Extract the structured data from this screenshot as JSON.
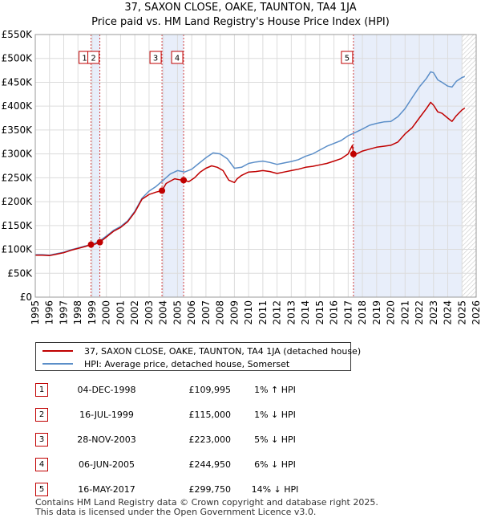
{
  "chart_data": {
    "type": "line",
    "title": "37, SAXON CLOSE, OAKE, TAUNTON, TA4 1JA",
    "subtitle": "Price paid vs. HM Land Registry's House Price Index (HPI)",
    "xlabel": "",
    "ylabel": "",
    "xlim": [
      1995,
      2026
    ],
    "ylim": [
      0,
      550000
    ],
    "y_ticks": [
      0,
      50000,
      100000,
      150000,
      200000,
      250000,
      300000,
      350000,
      400000,
      450000,
      500000,
      550000
    ],
    "y_tick_labels": [
      "£0",
      "£50K",
      "£100K",
      "£150K",
      "£200K",
      "£250K",
      "£300K",
      "£350K",
      "£400K",
      "£450K",
      "£500K",
      "£550K"
    ],
    "x_ticks": [
      1995,
      1996,
      1997,
      1998,
      1999,
      2000,
      2001,
      2002,
      2003,
      2004,
      2005,
      2006,
      2007,
      2008,
      2009,
      2010,
      2011,
      2012,
      2013,
      2014,
      2015,
      2016,
      2017,
      2018,
      2019,
      2020,
      2021,
      2022,
      2023,
      2024,
      2025,
      2026
    ],
    "x_tick_labels": [
      "1995",
      "1996",
      "1997",
      "1998",
      "1999",
      "2000",
      "2001",
      "2002",
      "2003",
      "2004",
      "2005",
      "2006",
      "2007",
      "2008",
      "2009",
      "2010",
      "2011",
      "2012",
      "2013",
      "2014",
      "2015",
      "2016",
      "2017",
      "2018",
      "2019",
      "2020",
      "2021",
      "2022",
      "2023",
      "2024",
      "2025",
      "2026"
    ],
    "grid": true,
    "hatch_after": 2025.0,
    "shaded_periods": [
      [
        1998.92,
        1999.54
      ],
      [
        2003.91,
        2005.43
      ],
      [
        2017.37,
        2025.0
      ]
    ],
    "series": [
      {
        "name": "37, SAXON CLOSE, OAKE, TAUNTON, TA4 1JA (detached house)",
        "color": "#c00000",
        "x": [
          1995.0,
          1995.5,
          1996.0,
          1996.5,
          1997.0,
          1997.5,
          1998.0,
          1998.5,
          1998.92,
          1999.2,
          1999.54,
          2000.0,
          2000.5,
          2001.0,
          2001.5,
          2002.0,
          2002.5,
          2003.0,
          2003.5,
          2003.91,
          2004.2,
          2004.5,
          2004.8,
          2005.1,
          2005.43,
          2005.8,
          2006.2,
          2006.6,
          2007.0,
          2007.4,
          2007.8,
          2008.2,
          2008.6,
          2009.0,
          2009.2,
          2009.5,
          2010.0,
          2010.5,
          2011.0,
          2011.5,
          2012.0,
          2012.5,
          2013.0,
          2013.5,
          2014.0,
          2014.5,
          2015.0,
          2015.5,
          2016.0,
          2016.5,
          2017.0,
          2017.3,
          2017.37,
          2017.6,
          2018.0,
          2018.5,
          2019.0,
          2019.5,
          2020.0,
          2020.5,
          2021.0,
          2021.5,
          2022.0,
          2022.5,
          2022.8,
          2023.0,
          2023.3,
          2023.6,
          2024.0,
          2024.3,
          2024.6,
          2025.0,
          2025.2
        ],
        "values": [
          88000,
          88000,
          87000,
          90000,
          93000,
          98000,
          102000,
          106000,
          109995,
          111000,
          115000,
          126000,
          138000,
          146000,
          158000,
          178000,
          205000,
          215000,
          220000,
          223000,
          238000,
          243000,
          248000,
          246000,
          244950,
          242000,
          250000,
          262000,
          270000,
          275000,
          272000,
          265000,
          245000,
          240000,
          248000,
          255000,
          262000,
          263000,
          265000,
          263000,
          259000,
          262000,
          265000,
          268000,
          272000,
          274000,
          277000,
          280000,
          285000,
          290000,
          300000,
          318000,
          299750,
          300000,
          306000,
          310000,
          314000,
          316000,
          318000,
          325000,
          342000,
          355000,
          375000,
          395000,
          408000,
          402000,
          388000,
          385000,
          375000,
          368000,
          380000,
          392000,
          396000
        ]
      },
      {
        "name": "HPI: Average price, detached house, Somerset",
        "color": "#5b8ec8",
        "x": [
          1995.0,
          1995.5,
          1996.0,
          1996.5,
          1997.0,
          1997.5,
          1998.0,
          1998.5,
          1999.0,
          1999.5,
          2000.0,
          2000.5,
          2001.0,
          2001.5,
          2002.0,
          2002.5,
          2003.0,
          2003.5,
          2004.0,
          2004.5,
          2005.0,
          2005.5,
          2006.0,
          2006.5,
          2007.0,
          2007.5,
          2008.0,
          2008.5,
          2009.0,
          2009.5,
          2010.0,
          2010.5,
          2011.0,
          2011.5,
          2012.0,
          2012.5,
          2013.0,
          2013.5,
          2014.0,
          2014.5,
          2015.0,
          2015.5,
          2016.0,
          2016.5,
          2017.0,
          2017.5,
          2018.0,
          2018.5,
          2019.0,
          2019.5,
          2020.0,
          2020.5,
          2021.0,
          2021.5,
          2022.0,
          2022.5,
          2022.8,
          2023.0,
          2023.3,
          2023.6,
          2024.0,
          2024.3,
          2024.6,
          2025.0,
          2025.2
        ],
        "values": [
          89000,
          89000,
          88000,
          91000,
          94000,
          99000,
          103000,
          107000,
          110000,
          117000,
          128000,
          140000,
          148000,
          160000,
          180000,
          207000,
          222000,
          232000,
          245000,
          258000,
          265000,
          262000,
          268000,
          280000,
          292000,
          302000,
          300000,
          290000,
          270000,
          272000,
          280000,
          283000,
          285000,
          282000,
          278000,
          281000,
          284000,
          288000,
          295000,
          300000,
          308000,
          316000,
          322000,
          328000,
          338000,
          345000,
          352000,
          360000,
          364000,
          367000,
          368000,
          378000,
          395000,
          418000,
          440000,
          458000,
          472000,
          470000,
          455000,
          450000,
          442000,
          440000,
          452000,
          460000,
          462000
        ]
      }
    ],
    "sale_markers": [
      {
        "label": "1",
        "x": 1998.92,
        "value": 109995
      },
      {
        "label": "2",
        "x": 1999.54,
        "value": 115000
      },
      {
        "label": "3",
        "x": 2003.91,
        "value": 223000
      },
      {
        "label": "4",
        "x": 2005.43,
        "value": 244950
      },
      {
        "label": "5",
        "x": 2017.37,
        "value": 299750
      }
    ]
  },
  "legend": {
    "items": [
      {
        "label": "37, SAXON CLOSE, OAKE, TAUNTON, TA4 1JA (detached house)",
        "color": "#c00000"
      },
      {
        "label": "HPI: Average price, detached house, Somerset",
        "color": "#5b8ec8"
      }
    ]
  },
  "sales_table": [
    {
      "num": "1",
      "date": "04-DEC-1998",
      "price": "£109,995",
      "hpi": "1% ↑ HPI"
    },
    {
      "num": "2",
      "date": "16-JUL-1999",
      "price": "£115,000",
      "hpi": "1% ↓ HPI"
    },
    {
      "num": "3",
      "date": "28-NOV-2003",
      "price": "£223,000",
      "hpi": "5% ↓ HPI"
    },
    {
      "num": "4",
      "date": "06-JUN-2005",
      "price": "£244,950",
      "hpi": "6% ↓ HPI"
    },
    {
      "num": "5",
      "date": "16-MAY-2017",
      "price": "£299,750",
      "hpi": "14% ↓ HPI"
    }
  ],
  "footer": {
    "line1": "Contains HM Land Registry data © Crown copyright and database right 2025.",
    "line2": "This data is licensed under the Open Government Licence v3.0."
  }
}
